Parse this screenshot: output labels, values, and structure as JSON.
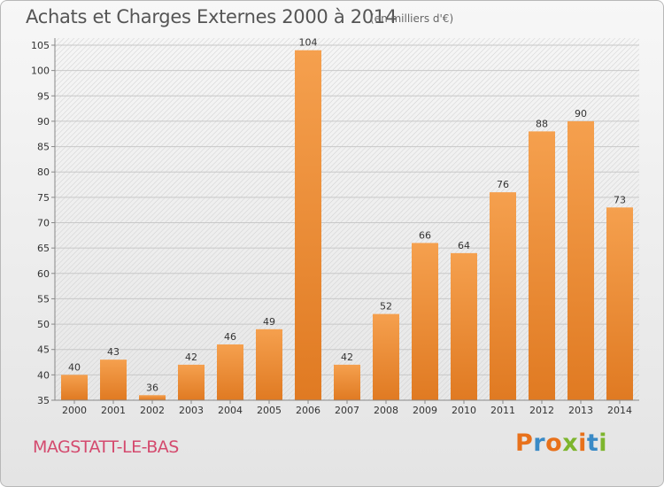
{
  "header": {
    "title": "Achats et Charges Externes 2000 à 2014",
    "unit": "(en milliers d'€)"
  },
  "footer": {
    "location": "MAGSTATT-LE-BAS",
    "brand": "Proxiti"
  },
  "colors": {
    "bar_top": "#f5a04e",
    "bar_bottom": "#e07a22",
    "brand_letters": [
      "#e8711b",
      "#3a8ac6",
      "#e8711b",
      "#7db52d",
      "#e8711b",
      "#3a8ac6",
      "#7db52d"
    ]
  },
  "chart_data": {
    "type": "bar",
    "categories": [
      "2000",
      "2001",
      "2002",
      "2003",
      "2004",
      "2005",
      "2006",
      "2007",
      "2008",
      "2009",
      "2010",
      "2011",
      "2012",
      "2013",
      "2014"
    ],
    "values": [
      40,
      43,
      36,
      42,
      46,
      49,
      104,
      42,
      52,
      66,
      64,
      76,
      88,
      90,
      73
    ],
    "ylim": [
      35,
      105
    ],
    "yticks": [
      35,
      40,
      45,
      50,
      55,
      60,
      65,
      70,
      75,
      80,
      85,
      90,
      95,
      100,
      105
    ],
    "grid": true,
    "legend": "none"
  }
}
